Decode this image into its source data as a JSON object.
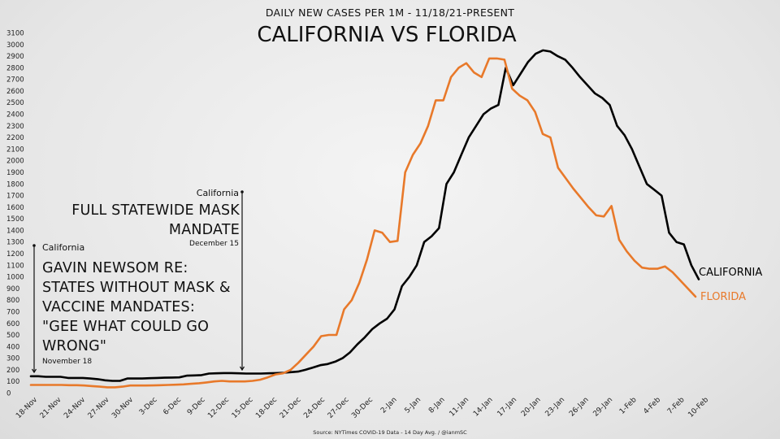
{
  "header": {
    "subtitle": "DAILY NEW CASES PER 1M - 11/18/21-PRESENT",
    "title": "CALIFORNIA VS FLORIDA"
  },
  "source": "Source: NYTimes COVID-19 Data - 14 Day Avg. / @ianmSC",
  "annotations": {
    "newsom": {
      "state": "California",
      "lines": [
        "GAVIN NEWSOM RE:",
        "STATES WITHOUT MASK &",
        "VACCINE MANDATES:",
        "\"GEE WHAT COULD GO",
        "WRONG\""
      ],
      "date": "November 18"
    },
    "mandate": {
      "state": "California",
      "lines": [
        "FULL STATEWIDE MASK",
        "MANDATE"
      ],
      "date": "December 15"
    }
  },
  "colors": {
    "california": "#000000",
    "florida": "#e8792a",
    "axis_text": "#222222"
  },
  "chart_data": {
    "type": "line",
    "title": "CALIFORNIA VS FLORIDA",
    "subtitle": "DAILY NEW CASES PER 1M - 11/18/21-PRESENT",
    "xlabel": "",
    "ylabel": "",
    "ylim": [
      0,
      3100
    ],
    "yticks": [
      0,
      100,
      200,
      300,
      400,
      500,
      600,
      700,
      800,
      900,
      1000,
      1100,
      1200,
      1300,
      1400,
      1500,
      1600,
      1700,
      1800,
      1900,
      2000,
      2100,
      2200,
      2300,
      2400,
      2500,
      2600,
      2700,
      2800,
      2900,
      3000,
      3100
    ],
    "xticks": [
      "18-Nov",
      "21-Nov",
      "24-Nov",
      "27-Nov",
      "30-Nov",
      "3-Dec",
      "6-Dec",
      "9-Dec",
      "12-Dec",
      "15-Dec",
      "18-Dec",
      "21-Dec",
      "24-Dec",
      "27-Dec",
      "30-Dec",
      "2-Jan",
      "5-Jan",
      "8-Jan",
      "11-Jan",
      "14-Jan",
      "17-Jan",
      "20-Jan",
      "23-Jan",
      "26-Jan",
      "29-Jan",
      "1-Feb",
      "4-Feb",
      "7-Feb",
      "10-Feb"
    ],
    "grid": false,
    "legend": "none",
    "series": [
      {
        "name": "CALIFORNIA",
        "values": [
          145,
          145,
          140,
          140,
          140,
          130,
          130,
          130,
          125,
          120,
          110,
          105,
          105,
          125,
          125,
          125,
          128,
          130,
          132,
          134,
          135,
          150,
          152,
          155,
          168,
          170,
          172,
          172,
          170,
          168,
          168,
          168,
          170,
          172,
          175,
          180,
          185,
          200,
          220,
          240,
          250,
          270,
          300,
          350,
          420,
          480,
          550,
          600,
          640,
          720,
          920,
          1000,
          1100,
          1300,
          1350,
          1420,
          1800,
          1900,
          2050,
          2200,
          2300,
          2400,
          2450,
          2480,
          2800,
          2650,
          2750,
          2850,
          2920,
          2950,
          2940,
          2900,
          2870,
          2800,
          2720,
          2650,
          2580,
          2540,
          2480,
          2300,
          2220,
          2100,
          1950,
          1800,
          1750,
          1700,
          1380,
          1300,
          1280,
          1100,
          980
        ]
      },
      {
        "name": "FLORIDA",
        "values": [
          70,
          70,
          70,
          70,
          70,
          68,
          68,
          65,
          60,
          55,
          50,
          50,
          55,
          65,
          65,
          65,
          66,
          68,
          70,
          72,
          75,
          80,
          85,
          92,
          100,
          105,
          100,
          100,
          100,
          105,
          115,
          135,
          160,
          170,
          200,
          260,
          330,
          400,
          490,
          500,
          500,
          720,
          800,
          950,
          1150,
          1400,
          1380,
          1300,
          1310,
          1900,
          2050,
          2150,
          2300,
          2520,
          2520,
          2720,
          2800,
          2840,
          2760,
          2720,
          2880,
          2880,
          2870,
          2620,
          2560,
          2520,
          2420,
          2230,
          2200,
          1940,
          1850,
          1760,
          1680,
          1600,
          1530,
          1520,
          1610,
          1320,
          1220,
          1140,
          1080,
          1070,
          1070,
          1090,
          1040,
          970,
          900,
          830
        ]
      }
    ]
  }
}
